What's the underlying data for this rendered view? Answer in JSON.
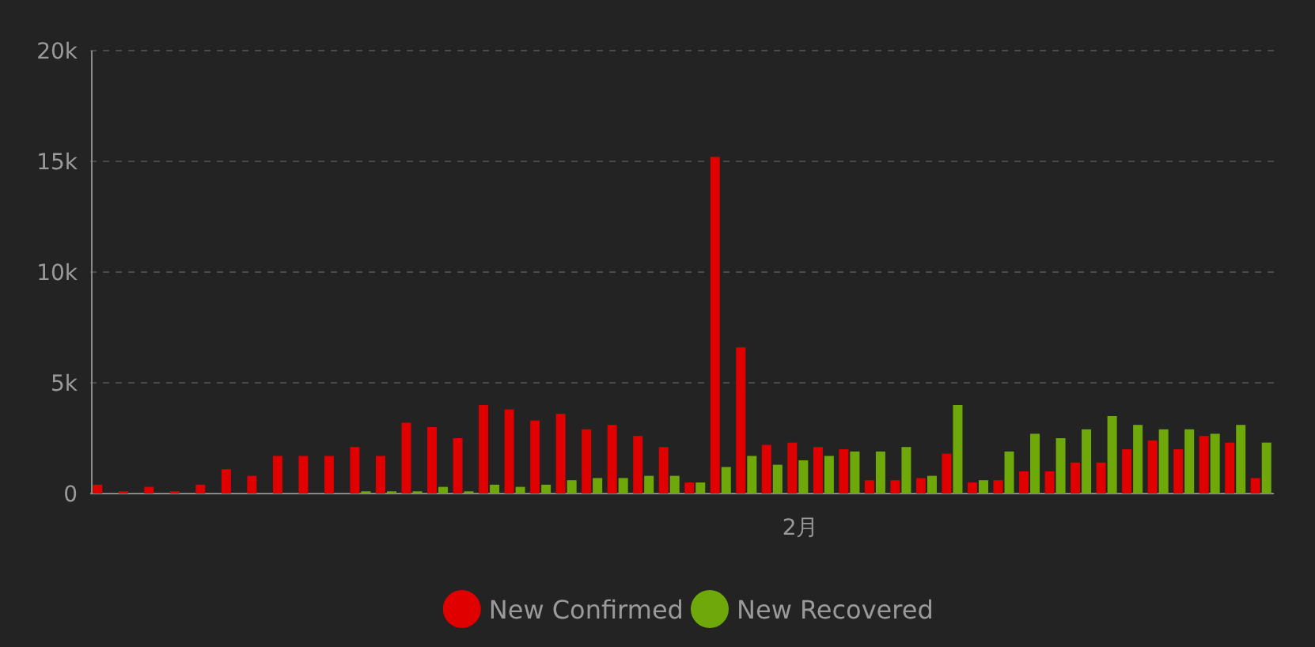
{
  "chart_data": {
    "type": "bar",
    "categories": [
      null,
      null,
      null,
      null,
      null,
      null,
      null,
      null,
      null,
      null,
      null,
      null,
      null,
      null,
      null,
      null,
      null,
      null,
      null,
      null,
      null,
      null,
      null,
      null,
      null,
      null,
      null,
      null,
      null,
      null,
      null,
      null,
      null,
      null,
      null,
      null,
      null,
      null,
      null,
      null,
      null,
      null,
      null,
      null,
      null,
      null
    ],
    "annotations": [
      "2月"
    ],
    "series": [
      {
        "name": "New Confirmed",
        "color": "#e00000",
        "values": [
          400,
          100,
          300,
          100,
          400,
          1100,
          800,
          1700,
          1700,
          1700,
          2100,
          1700,
          3200,
          3000,
          2500,
          4000,
          3800,
          3300,
          3600,
          2900,
          3100,
          2600,
          2100,
          500,
          15200,
          6600,
          2200,
          2300,
          2100,
          2000,
          600,
          600,
          700,
          1800,
          500,
          600,
          1000,
          1000,
          1400,
          1400,
          2000,
          2400,
          2000,
          2600,
          2300,
          700
        ]
      },
      {
        "name": "New Recovered",
        "color": "#6fa80a",
        "values": [
          0,
          0,
          0,
          0,
          0,
          0,
          0,
          0,
          0,
          0,
          100,
          100,
          100,
          300,
          100,
          400,
          300,
          400,
          600,
          700,
          700,
          800,
          800,
          500,
          1200,
          1700,
          1300,
          1500,
          1700,
          1900,
          1900,
          2100,
          800,
          4000,
          600,
          1900,
          2700,
          2500,
          2900,
          3500,
          3100,
          2900,
          2900,
          2700,
          3100,
          2300
        ]
      }
    ],
    "ylim": [
      0,
      20000
    ],
    "yticks": [
      {
        "value": 0,
        "label": "0"
      },
      {
        "value": 5000,
        "label": "5k"
      },
      {
        "value": 10000,
        "label": "10k"
      },
      {
        "value": 15000,
        "label": "15k"
      },
      {
        "value": 20000,
        "label": "20k"
      }
    ],
    "grid": "y",
    "legend": "bottom"
  }
}
